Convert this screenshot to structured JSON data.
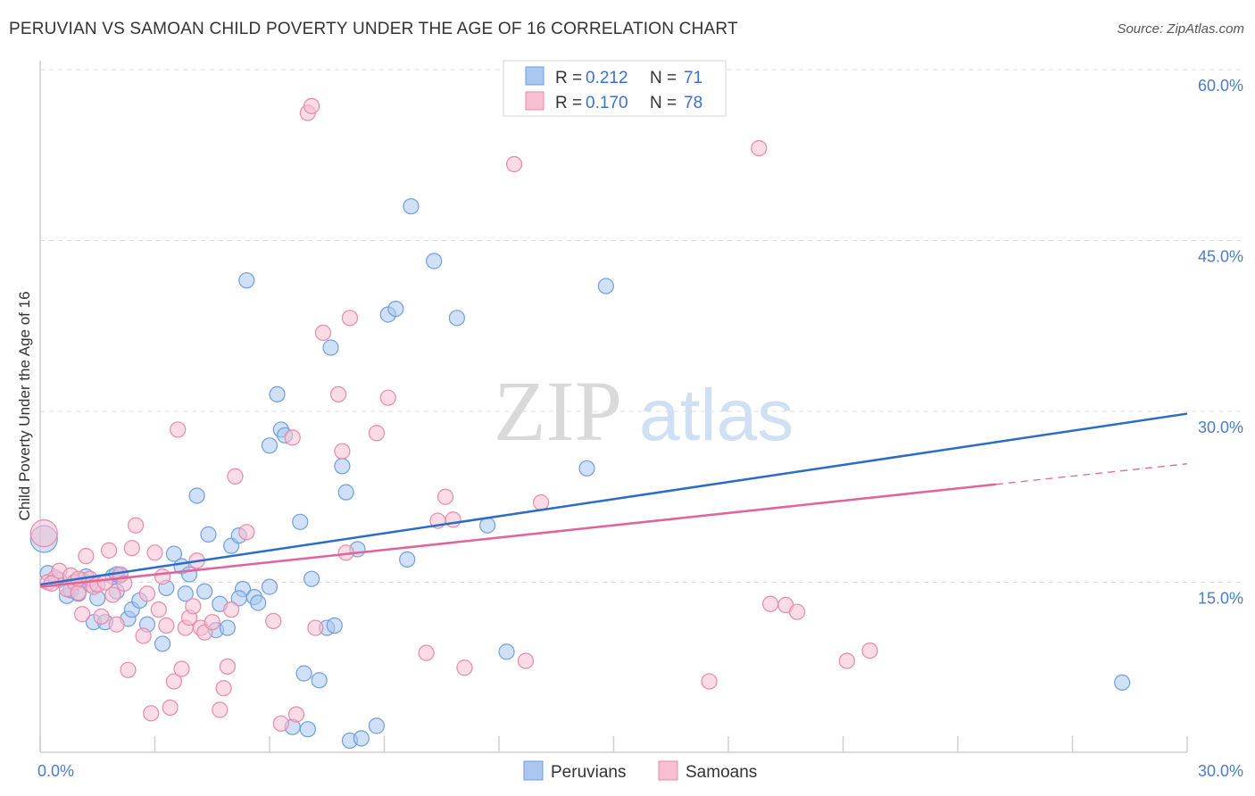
{
  "title": "PERUVIAN VS SAMOAN CHILD POVERTY UNDER THE AGE OF 16 CORRELATION CHART",
  "source": "Source: ZipAtlas.com",
  "watermark": {
    "zip": "ZIP",
    "atlas": "atlas"
  },
  "legend": {
    "r_label": "R =",
    "n_label": "N =",
    "rows": [
      {
        "r": "0.212",
        "n": "71",
        "color": "#a9c7ef",
        "stroke": "#6f9fdc"
      },
      {
        "r": "0.170",
        "n": "78",
        "color": "#f7bfd1",
        "stroke": "#e889a8"
      }
    ]
  },
  "bottom_legend": [
    "Peruvians",
    "Samoans"
  ],
  "chart_data": {
    "type": "scatter",
    "title": "PERUVIAN VS SAMOAN CHILD POVERTY UNDER THE AGE OF 16 CORRELATION CHART",
    "xlabel": "",
    "ylabel": "Child Poverty Under the Age of 16",
    "xlim": [
      0,
      30
    ],
    "ylim": [
      0,
      60
    ],
    "x_tick_labels": [
      "0.0%",
      "30.0%"
    ],
    "y_ticks": [
      15,
      30,
      45,
      60
    ],
    "y_tick_labels": [
      "15.0%",
      "30.0%",
      "45.0%",
      "60.0%"
    ],
    "grid": true,
    "legend_position": "top-center",
    "series": [
      {
        "name": "Peruvians",
        "color": "#6f9fdc",
        "fill": "#a9c7ef",
        "trend": {
          "x": [
            0,
            30
          ],
          "y": [
            14.8,
            29.8
          ],
          "color": "#2b6cc9"
        },
        "points": [
          [
            0.2,
            15.8
          ],
          [
            0.5,
            15.2
          ],
          [
            0.7,
            13.8
          ],
          [
            0.8,
            14.3
          ],
          [
            0.9,
            15.0
          ],
          [
            1.0,
            14.0
          ],
          [
            1.1,
            15.2
          ],
          [
            1.2,
            15.5
          ],
          [
            1.4,
            11.5
          ],
          [
            1.5,
            13.6
          ],
          [
            1.7,
            11.5
          ],
          [
            1.9,
            15.5
          ],
          [
            2.0,
            14.2
          ],
          [
            2.1,
            15.6
          ],
          [
            2.3,
            11.8
          ],
          [
            2.4,
            12.6
          ],
          [
            2.6,
            13.4
          ],
          [
            2.8,
            11.3
          ],
          [
            3.2,
            9.6
          ],
          [
            3.3,
            14.5
          ],
          [
            3.5,
            17.5
          ],
          [
            3.7,
            16.4
          ],
          [
            3.8,
            14.0
          ],
          [
            3.9,
            15.7
          ],
          [
            4.1,
            22.6
          ],
          [
            4.3,
            14.2
          ],
          [
            4.4,
            19.2
          ],
          [
            4.6,
            10.8
          ],
          [
            4.7,
            13.1
          ],
          [
            4.9,
            11.0
          ],
          [
            5.0,
            18.2
          ],
          [
            5.2,
            19.1
          ],
          [
            5.3,
            14.4
          ],
          [
            5.4,
            41.5
          ],
          [
            5.6,
            13.7
          ],
          [
            5.7,
            13.2
          ],
          [
            6.0,
            14.6
          ],
          [
            6.0,
            27.0
          ],
          [
            6.2,
            31.5
          ],
          [
            6.3,
            28.4
          ],
          [
            6.4,
            27.9
          ],
          [
            6.6,
            2.3
          ],
          [
            6.8,
            20.3
          ],
          [
            6.9,
            7.0
          ],
          [
            7.0,
            2.1
          ],
          [
            7.1,
            15.3
          ],
          [
            7.3,
            6.4
          ],
          [
            7.5,
            11.0
          ],
          [
            7.6,
            35.6
          ],
          [
            7.7,
            11.2
          ],
          [
            7.9,
            25.2
          ],
          [
            8.0,
            22.9
          ],
          [
            8.1,
            1.1
          ],
          [
            8.3,
            17.9
          ],
          [
            8.4,
            1.3
          ],
          [
            8.8,
            2.4
          ],
          [
            9.1,
            38.5
          ],
          [
            9.3,
            39.0
          ],
          [
            9.6,
            17.0
          ],
          [
            9.7,
            48.0
          ],
          [
            10.3,
            43.2
          ],
          [
            10.9,
            38.2
          ],
          [
            11.7,
            20.0
          ],
          [
            12.2,
            8.9
          ],
          [
            14.3,
            25.0
          ],
          [
            14.8,
            41.0
          ],
          [
            28.3,
            6.2
          ],
          [
            0.1,
            18.8
          ],
          [
            1.3,
            14.8
          ],
          [
            2.0,
            15.7
          ],
          [
            5.2,
            13.6
          ]
        ]
      },
      {
        "name": "Samoans",
        "color": "#e889a8",
        "fill": "#f7bfd1",
        "trend": {
          "x": [
            0,
            25
          ],
          "y": [
            14.6,
            23.6
          ],
          "dash_x": [
            25,
            30
          ],
          "dash_y": [
            23.6,
            25.4
          ],
          "color": "#e0649a"
        },
        "points": [
          [
            0.1,
            19.3
          ],
          [
            0.2,
            15.0
          ],
          [
            0.4,
            15.4
          ],
          [
            0.5,
            16.0
          ],
          [
            0.7,
            14.4
          ],
          [
            0.8,
            15.6
          ],
          [
            0.9,
            15.0
          ],
          [
            1.0,
            14.1
          ],
          [
            1.1,
            12.2
          ],
          [
            1.2,
            17.3
          ],
          [
            1.3,
            15.3
          ],
          [
            1.4,
            14.6
          ],
          [
            1.5,
            14.8
          ],
          [
            1.6,
            12.0
          ],
          [
            1.7,
            15.0
          ],
          [
            1.8,
            17.8
          ],
          [
            1.9,
            13.9
          ],
          [
            2.0,
            11.3
          ],
          [
            2.1,
            15.7
          ],
          [
            2.2,
            14.9
          ],
          [
            2.3,
            7.3
          ],
          [
            2.4,
            18.0
          ],
          [
            2.5,
            20.0
          ],
          [
            2.7,
            10.3
          ],
          [
            2.8,
            14.0
          ],
          [
            2.9,
            3.5
          ],
          [
            3.0,
            17.6
          ],
          [
            3.1,
            12.6
          ],
          [
            3.3,
            11.2
          ],
          [
            3.4,
            4.0
          ],
          [
            3.5,
            6.3
          ],
          [
            3.6,
            28.4
          ],
          [
            3.7,
            7.4
          ],
          [
            3.8,
            11.0
          ],
          [
            3.9,
            11.9
          ],
          [
            4.0,
            12.9
          ],
          [
            4.1,
            16.9
          ],
          [
            4.2,
            11.0
          ],
          [
            4.3,
            10.6
          ],
          [
            4.5,
            11.5
          ],
          [
            4.7,
            3.8
          ],
          [
            4.8,
            5.7
          ],
          [
            4.9,
            7.6
          ],
          [
            5.0,
            12.6
          ],
          [
            5.1,
            24.3
          ],
          [
            5.4,
            19.4
          ],
          [
            6.1,
            11.6
          ],
          [
            6.3,
            2.6
          ],
          [
            6.6,
            27.7
          ],
          [
            6.7,
            3.4
          ],
          [
            7.0,
            56.2
          ],
          [
            7.1,
            56.8
          ],
          [
            7.2,
            11.0
          ],
          [
            7.4,
            36.9
          ],
          [
            7.8,
            31.5
          ],
          [
            7.9,
            26.5
          ],
          [
            8.0,
            17.6
          ],
          [
            8.1,
            38.2
          ],
          [
            8.8,
            28.1
          ],
          [
            9.1,
            31.2
          ],
          [
            10.1,
            8.8
          ],
          [
            10.4,
            20.4
          ],
          [
            10.6,
            22.5
          ],
          [
            10.8,
            20.5
          ],
          [
            11.1,
            7.5
          ],
          [
            12.4,
            51.7
          ],
          [
            12.7,
            8.1
          ],
          [
            13.1,
            22.0
          ],
          [
            17.5,
            6.3
          ],
          [
            18.8,
            53.1
          ],
          [
            19.1,
            13.1
          ],
          [
            19.5,
            13.0
          ],
          [
            19.8,
            12.4
          ],
          [
            21.1,
            8.1
          ],
          [
            21.7,
            9.0
          ],
          [
            0.3,
            14.9
          ],
          [
            1.0,
            15.3
          ],
          [
            3.2,
            15.5
          ]
        ]
      }
    ]
  }
}
